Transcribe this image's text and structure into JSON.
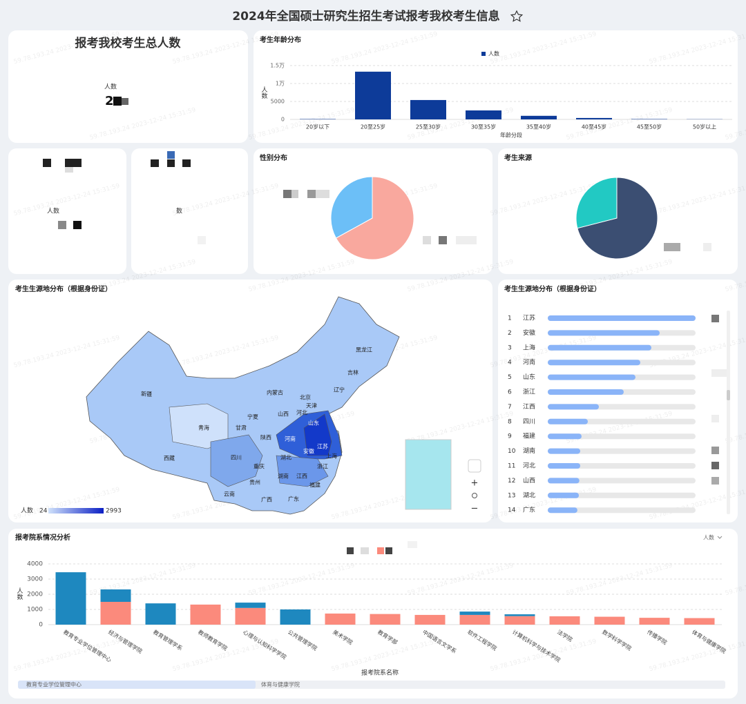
{
  "title": "2024年全国硕士研究生招生考试报考我校考生信息",
  "watermark": "59.78.193.24 2023-12-24 15:31:59",
  "total_card": {
    "title": "报考我校考生总人数",
    "label": "人数",
    "value": "2"
  },
  "small_cards": [
    {
      "label": "人数"
    },
    {
      "label": "数"
    }
  ],
  "chart_data": [
    {
      "type": "bar",
      "title": "考生年龄分布",
      "x_label": "年龄分段",
      "y_label": "人数",
      "categories": [
        "20岁以下",
        "20至25岁",
        "25至30岁",
        "30至35岁",
        "35至40岁",
        "40至45岁",
        "45至50岁",
        "50岁以上"
      ],
      "series": [
        {
          "name": "人数",
          "color": "#0d3b99",
          "values": [
            100,
            13300,
            5400,
            2500,
            1000,
            400,
            100,
            50
          ]
        }
      ],
      "ylim": [
        0,
        15000
      ],
      "yticks": [
        0,
        5000,
        {
          "value": 10000,
          "label": "1万"
        },
        {
          "value": 15000,
          "label": "1.5万"
        }
      ],
      "grid": true,
      "legend": "top"
    },
    {
      "type": "pie",
      "title": "性别分布",
      "values": [
        67,
        33
      ],
      "colors": [
        "#f9a89e",
        "#6cbff7"
      ]
    },
    {
      "type": "pie",
      "title": "考生来源",
      "values": [
        71,
        29
      ],
      "colors": [
        "#3b4e72",
        "#22c9c3"
      ]
    },
    {
      "type": "map",
      "title": "考生生源地分布（根据身份证）",
      "visual_map": {
        "label": "人数",
        "min": 24,
        "max": 2993
      },
      "regions": [
        "新疆",
        "西藏",
        "青海",
        "甘肃",
        "宁夏",
        "内蒙古",
        "黑龙江",
        "吉林",
        "辽宁",
        "北京",
        "天津",
        "河北",
        "山西",
        "陕西",
        "山东",
        "河南",
        "江苏",
        "安徽",
        "上海",
        "浙江",
        "湖北",
        "四川",
        "重庆",
        "湖南",
        "江西",
        "贵州",
        "云南",
        "广西",
        "广东",
        "福建"
      ]
    },
    {
      "type": "hbar",
      "title": "考生生源地分布（根据身份证）",
      "ranks": [
        "1",
        "2",
        "3",
        "4",
        "5",
        "6",
        "7",
        "8",
        "9",
        "10",
        "11",
        "12",
        "13",
        "14"
      ],
      "categories": [
        "江苏",
        "安徽",
        "上海",
        "河南",
        "山东",
        "浙江",
        "江西",
        "四川",
        "福建",
        "湖南",
        "河北",
        "山西",
        "湖北",
        "广东"
      ],
      "values": [
        2993,
        2266,
        2098,
        1874,
        1776,
        1538,
        1035,
        811,
        685,
        658,
        658,
        640,
        630,
        600
      ],
      "xlim": [
        0,
        2993
      ],
      "color": "#8ab4f8"
    },
    {
      "type": "stacked_bar",
      "title": "报考院系情况分析",
      "x_label": "报考院系名称",
      "y_label": "人数",
      "measure": "人数",
      "categories": [
        "教育专业学位管理中心",
        "经济与管理学院",
        "教育管理学系",
        "教师教育学院",
        "心理与认知科学学院",
        "公共管理学院",
        "美术学院",
        "教育学部",
        "中国语言文学系",
        "软件工程学院",
        "计算机科学与技术学院",
        "法学院",
        "数学科学学院",
        "传播学院",
        "体育与健康学院"
      ],
      "series": [
        {
          "color": "#fb8a7c",
          "values": [
            0,
            1500,
            0,
            1320,
            1100,
            0,
            730,
            700,
            640,
            640,
            560,
            550,
            520,
            450,
            430
          ]
        },
        {
          "color": "#1e88bf",
          "values": [
            3450,
            820,
            1400,
            0,
            350,
            1000,
            0,
            0,
            0,
            220,
            120,
            0,
            0,
            0,
            0
          ]
        }
      ],
      "ylim": [
        0,
        4000
      ],
      "yticks": [
        0,
        1000,
        2000,
        3000,
        4000
      ],
      "grid": true,
      "slider": [
        "教育专业学位管理中心",
        "体育与健康学院"
      ]
    }
  ]
}
